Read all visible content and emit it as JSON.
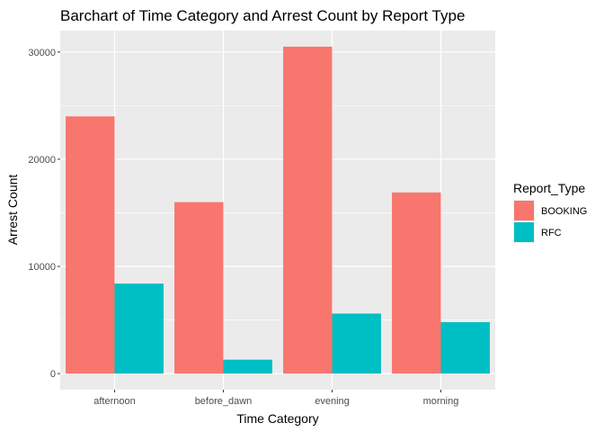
{
  "chart_data": {
    "type": "bar",
    "title": "Barchart of Time Category and Arrest Count by Report Type",
    "xlabel": "Time Category",
    "ylabel": "Arrest Count",
    "categories": [
      "afternoon",
      "before_dawn",
      "evening",
      "morning"
    ],
    "series": [
      {
        "name": "BOOKING",
        "color": "#F8766D",
        "values": [
          24000,
          16000,
          30500,
          16900
        ]
      },
      {
        "name": "RFC",
        "color": "#00BFC4",
        "values": [
          8400,
          1300,
          5600,
          4800
        ]
      }
    ],
    "ylim": [
      -1500,
      32000
    ],
    "yticks": [
      0,
      10000,
      20000,
      30000
    ],
    "ytick_labels": [
      "0",
      "10000",
      "20000",
      "30000"
    ],
    "grid": true,
    "legend": {
      "title": "Report_Type",
      "position": "right"
    }
  }
}
